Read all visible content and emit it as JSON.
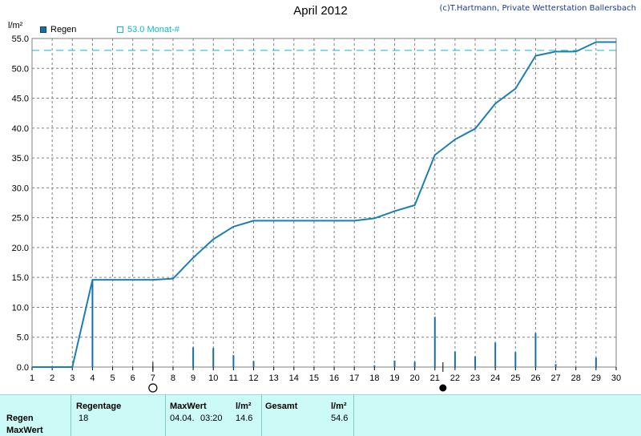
{
  "title": "April 2012",
  "copyright": "(c)T.Hartmann, Private Wetterstation Ballersbach",
  "legend": {
    "rain": "Regen",
    "reference": "53.0 Monat-#"
  },
  "colors": {
    "bars": "#1a6fa8",
    "line": "#1c7fb0",
    "reference": "#10b8c8",
    "grid": "#808080",
    "table_bg": "#ccfaf6"
  },
  "chart_data": {
    "type": "bar",
    "ylabel": "l/m²",
    "ylim": [
      0,
      55
    ],
    "yticks": [
      "0.0",
      "5.0",
      "10.0",
      "15.0",
      "20.0",
      "25.0",
      "30.0",
      "35.0",
      "40.0",
      "45.0",
      "50.0",
      "55.0"
    ],
    "xlim": [
      1,
      30
    ],
    "xticks": [
      "1",
      "2",
      "3",
      "4",
      "5",
      "6",
      "7",
      "8",
      "9",
      "10",
      "11",
      "12",
      "13",
      "14",
      "15",
      "16",
      "17",
      "18",
      "19",
      "20",
      "21",
      "22",
      "23",
      "24",
      "25",
      "26",
      "27",
      "28",
      "29",
      "30"
    ],
    "grid": true,
    "series": [
      {
        "name": "Regen",
        "kind": "bar",
        "x": [
          4,
          9,
          10,
          11,
          12,
          18,
          19,
          20,
          21,
          22,
          23,
          24,
          25,
          26,
          27,
          29
        ],
        "values": [
          14.6,
          3.3,
          3.2,
          2.0,
          1.0,
          0.3,
          1.1,
          0.9,
          8.4,
          2.6,
          1.8,
          4.1,
          2.5,
          5.7,
          0.5,
          1.6
        ]
      },
      {
        "kind": "line",
        "x": [
          1,
          3,
          4,
          7,
          8,
          9,
          10,
          11,
          12,
          17,
          18,
          19,
          20,
          21,
          22,
          23,
          24,
          25,
          26,
          27,
          28,
          29,
          30
        ],
        "values": [
          0,
          0,
          14.6,
          14.6,
          14.8,
          18.3,
          21.4,
          23.5,
          24.5,
          24.5,
          24.9,
          26.1,
          27.1,
          35.5,
          38.1,
          39.9,
          44.1,
          46.6,
          52.1,
          52.8,
          52.8,
          54.4,
          54.4
        ]
      },
      {
        "name": "53.0 Monat-#",
        "kind": "reference",
        "value": 53.0
      }
    ],
    "moon_phases": [
      {
        "day": 7,
        "phase": "full"
      },
      {
        "day": 21.4,
        "phase": "new"
      }
    ]
  },
  "summary": {
    "row_labels": [
      "Regen",
      "MaxWert"
    ],
    "headers": {
      "rain_days": "Regentage",
      "max": "MaxWert",
      "max_unit": "l/m²",
      "total": "Gesamt",
      "total_unit": "l/m²"
    },
    "values": {
      "rain_days": "18",
      "max_date": "04.04.",
      "max_time": "03:20",
      "max_value": "14.6",
      "total": "54.6"
    }
  }
}
